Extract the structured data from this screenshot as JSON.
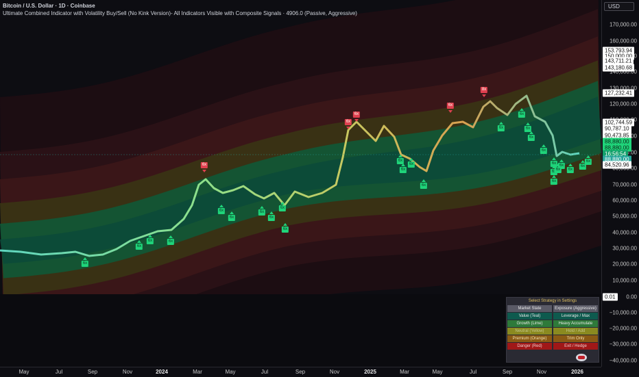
{
  "header": {
    "symbol_line": "Bitcoin / U.S. Dollar · 1D · Coinbase",
    "indicator_line": "Ultimate Combined Indicator with Volatility Buy/Sell (No Kink Version)- All Indicators Visible with Composite Signals · 4906.0 (Passive, Aggressive)"
  },
  "currency_button": "USD",
  "price_axis": {
    "ticks": [
      "170,000.00",
      "160,000.00",
      "150,000.00",
      "140,000.00",
      "130,000.00",
      "120,000.00",
      "110,000.00",
      "100,000.00",
      "90,000.00",
      "80,000.00",
      "70,000.00",
      "60,000.00",
      "50,000.00",
      "40,000.00",
      "30,000.00",
      "20,000.00",
      "10,000.00",
      "0.00",
      "−10,000.00",
      "−20,000.00",
      "−30,000.00",
      "−40,000.00"
    ]
  },
  "price_labels": [
    {
      "text": "153,793.94",
      "bg": "#ffffff",
      "fg": "#111111"
    },
    {
      "text": "150,000.00",
      "bg": "#ffffff",
      "fg": "#111111"
    },
    {
      "text": "143,711.21",
      "bg": "#ffffff",
      "fg": "#111111"
    },
    {
      "text": "143,180.68",
      "bg": "#ffffff",
      "fg": "#111111"
    },
    {
      "text": "127,232.41",
      "bg": "#ffffff",
      "fg": "#111111"
    },
    {
      "text": "102,744.59",
      "bg": "#ffffff",
      "fg": "#111111"
    },
    {
      "text": "90,787.10",
      "bg": "#ffffff",
      "fg": "#111111"
    },
    {
      "text": "90,473.85",
      "bg": "#ffffff",
      "fg": "#111111"
    },
    {
      "text": "88,880.00",
      "bg": "#1fd47a",
      "fg": "#0a2a18"
    },
    {
      "text": "88,880.00",
      "bg": "#1fd47a",
      "fg": "#0a2a18"
    },
    {
      "text": "16:56:54",
      "bg": "#12a06a",
      "fg": "#ffffff"
    },
    {
      "text": "88,880.00",
      "bg": "#26a69a",
      "fg": "#ffffff"
    },
    {
      "text": "84,520.96",
      "bg": "#ffffff",
      "fg": "#111111"
    },
    {
      "text": "0.01",
      "bg": "#ffffff",
      "fg": "#111111"
    }
  ],
  "time_axis": {
    "ticks": [
      {
        "label": "May",
        "year": false
      },
      {
        "label": "Jul",
        "year": false
      },
      {
        "label": "Sep",
        "year": false
      },
      {
        "label": "Nov",
        "year": false
      },
      {
        "label": "2024",
        "year": true
      },
      {
        "label": "Mar",
        "year": false
      },
      {
        "label": "May",
        "year": false
      },
      {
        "label": "Jul",
        "year": false
      },
      {
        "label": "Sep",
        "year": false
      },
      {
        "label": "Nov",
        "year": false
      },
      {
        "label": "2025",
        "year": true
      },
      {
        "label": "Mar",
        "year": false
      },
      {
        "label": "May",
        "year": false
      },
      {
        "label": "Jul",
        "year": false
      },
      {
        "label": "Sep",
        "year": false
      },
      {
        "label": "Nov",
        "year": false
      },
      {
        "label": "2026",
        "year": true
      }
    ]
  },
  "signals": {
    "sell": [
      "6x",
      "6x",
      "6x",
      "6x",
      "8x"
    ],
    "buy": [
      "6x",
      "6x",
      "6x",
      "6x",
      "6x",
      "6x",
      "6x",
      "6x",
      "6x",
      "6x",
      "6x",
      "6x",
      "6x",
      "6x",
      "6x",
      "6x",
      "6x",
      "6x",
      "6x",
      "6x",
      "6x",
      "6x",
      "6x",
      "6x",
      "6x",
      "6x",
      "6x"
    ]
  },
  "strategy_table": {
    "title": "Select Strategy in Settings",
    "rows": [
      {
        "left": "Market State",
        "right": "Exposure (Aggressive)",
        "bg_left": "#5a5a66",
        "bg_right": "#5a5a66",
        "fg": "#e8e8e8"
      },
      {
        "left": "Value (Teal)",
        "right": "Leverage / Max",
        "bg_left": "#0e5a4e",
        "bg_right": "#0e5a4e",
        "fg": "#e8e8e8"
      },
      {
        "left": "Growth (Lime)",
        "right": "Heavy Accumulate",
        "bg_left": "#2e7a3a",
        "bg_right": "#2e7a3a",
        "fg": "#e8e8e8"
      },
      {
        "left": "Neutral (Yellow)",
        "right": "Hold / Add",
        "bg_left": "#8a8a20",
        "bg_right": "#8a8a20",
        "fg": "#c8c890"
      },
      {
        "left": "Premium (Orange)",
        "right": "Trim Only",
        "bg_left": "#8a5a14",
        "bg_right": "#8a5a14",
        "fg": "#f0e0b0"
      },
      {
        "left": "Danger (Red)",
        "right": "Exit / Hedge",
        "bg_left": "#a01818",
        "bg_right": "#a01818",
        "fg": "#f0d0d0"
      }
    ]
  },
  "colors": {
    "background": "#0d0d12",
    "price_line_up": "#b8e05a",
    "price_line_teal": "#5fd6c0",
    "band_green": "#0e5a38",
    "band_yellow": "#5a5a14",
    "band_red": "#5a1414"
  }
}
